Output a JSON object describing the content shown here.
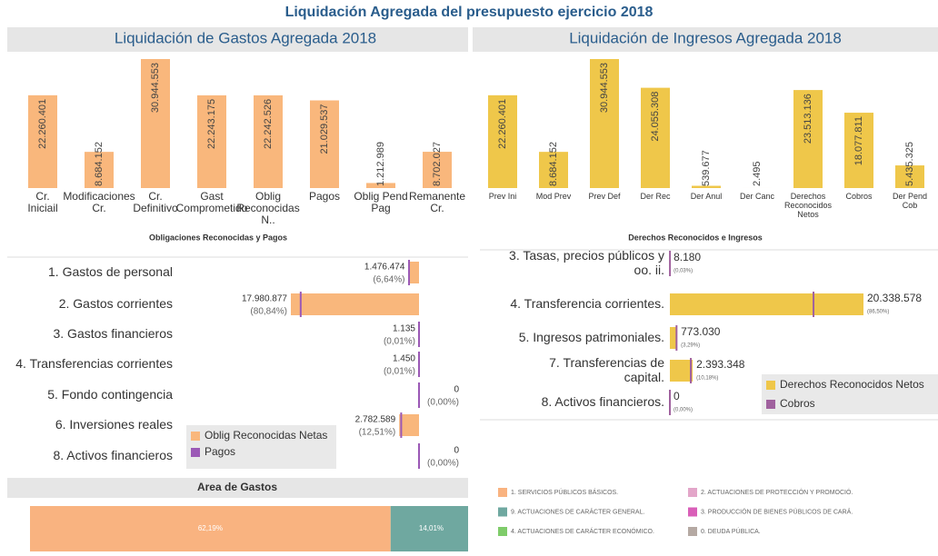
{
  "title": "Liquidación Agregada del presupuesto ejercicio 2018",
  "chart_data": [
    {
      "type": "bar",
      "title": "Liquidación de Gastos Agregada 2018",
      "x_label": "Obligaciones Reconocidas y Pagos",
      "color": "#f9b77c",
      "categories": [
        "Cr. Iniciail",
        "Modificaciones Cr.",
        "Cr. Definitivo",
        "Gast Comprometido",
        "Oblig Reconocidas N..",
        "Pagos",
        "Oblig Pend Pag",
        "Remanente Cr."
      ],
      "values": [
        22260401,
        8684152,
        30944553,
        22243175,
        22242526,
        21029537,
        1212989,
        8702027
      ],
      "value_labels": [
        "22.260.401",
        "8.684.152",
        "30.944.553",
        "22.243.175",
        "22.242.526",
        "21.029.537",
        "1.212.989",
        "8.702.027"
      ]
    },
    {
      "type": "bar",
      "title": "Liquidación de Ingresos Agregada 2018",
      "x_label": "Derechos Reconocidos e Ingresos",
      "color": "#efc74a",
      "categories": [
        "Prev Ini",
        "Mod Prev",
        "Prev Def",
        "Der Rec",
        "Der Anul",
        "Der Canc",
        "Derechos Reconocidos Netos",
        "Cobros",
        "Der Pend Cob"
      ],
      "values": [
        22260401,
        8684152,
        30944553,
        24055308,
        539677,
        2495,
        23513136,
        18077811,
        5435325
      ],
      "value_labels": [
        "22.260.401",
        "8.684.152",
        "30.944.553",
        "24.055.308",
        "539.677",
        "2.495",
        "23.513.136",
        "18.077.811",
        "5.435.325"
      ]
    },
    {
      "type": "hbar",
      "categories": [
        "1. Gastos de personal",
        "2. Gastos corrientes",
        "3. Gastos financieros",
        "4. Transferencias corrientes",
        "5. Fondo contingencia",
        "6. Inversiones reales",
        "8. Activos financieros"
      ],
      "series": [
        {
          "name": "Oblig Reconocidas Netas",
          "color": "#f9b77c",
          "values": [
            1476474,
            17980877,
            1135,
            1450,
            0,
            2782589,
            0
          ],
          "value_labels": [
            "1.476.474",
            "17.980.877",
            "1.135",
            "1.450",
            "0",
            "2.782.589",
            "0"
          ],
          "share_labels": [
            "(6,64%)",
            "(80,84%)",
            "(0,01%)",
            "(0,01%)",
            "(0,00%)",
            "(12,51%)",
            "(0,00%)"
          ]
        },
        {
          "name": "Pagos",
          "color": "#9b59b6",
          "values": [
            1400000,
            16600000,
            1135,
            1450,
            0,
            2500000,
            0
          ]
        }
      ]
    },
    {
      "type": "hbar",
      "categories": [
        "3. Tasas, precios públicos y oo. ii.",
        "4. Transferencia corrientes.",
        "5. Ingresos patrimoniales.",
        "7. Transferencias de capital.",
        "8. Activos financieros."
      ],
      "series": [
        {
          "name": "Derechos Reconocidos Netos",
          "color": "#efc74a",
          "values": [
            8180,
            20338578,
            773030,
            2393348,
            0
          ],
          "value_labels": [
            "8.180",
            "20.338.578",
            "773.030",
            "2.393.348",
            "0"
          ],
          "share_labels": [
            "(0,03%)",
            "(86,50%)",
            "(3,29%)",
            "(10,18%)",
            "(0,00%)"
          ]
        },
        {
          "name": "Cobros",
          "color": "#a0619e",
          "values": [
            8000,
            15090000,
            700000,
            2200000,
            0
          ]
        }
      ]
    },
    {
      "type": "stacked_hbar",
      "title": "Area de Gastos",
      "xlim": [
        0,
        100
      ],
      "categories": [
        "1. SERVICIOS PÚBLICOS BÁSICOS.",
        "9. ACTUACIONES DE CARÁCTER GENERAL.",
        "4. ACTUACIONES DE CARÁCTER ECONÓMICO.",
        "2. ACTUACIONES DE PROTECCIÓN Y PROMOCIÓ.",
        "3. PRODUCCIÓN DE BIENES PÚBLICOS DE CARÁ.",
        "0. DEUDA PÚBLICA."
      ],
      "colors": [
        "#f9b380",
        "#6fa8a0",
        "#7fcc6a",
        "#e3a6c9",
        "#d95fb8",
        "#b5a9a3"
      ],
      "values": [
        62.19,
        14.01,
        2.1,
        1.2,
        0.5,
        0.3
      ],
      "value_labels": [
        "62,19%",
        "14,01%",
        null,
        null,
        null,
        null
      ]
    }
  ]
}
